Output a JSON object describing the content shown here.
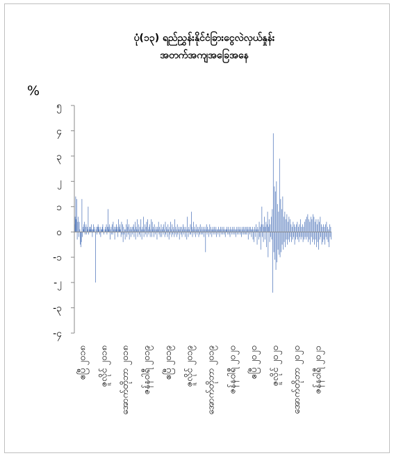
{
  "chart_data": {
    "type": "bar",
    "title_line1": "ပုံ(၁၃) ရည်ညွှန်းနိုင်ငံခြားငွေလဲလှယ်နှုန်း",
    "title_line2": "အတက်အကျအခြေအနေ",
    "ylabel": "%",
    "ylim": [
      -4,
      5
    ],
    "y_ticks": [
      {
        "value": 5,
        "label": "၅"
      },
      {
        "value": 4,
        "label": "၄"
      },
      {
        "value": 3,
        "label": "၃"
      },
      {
        "value": 2,
        "label": "၂"
      },
      {
        "value": 1,
        "label": "၁"
      },
      {
        "value": 0,
        "label": "၀"
      },
      {
        "value": -1,
        "label": "-၁"
      },
      {
        "value": -2,
        "label": "-၂"
      },
      {
        "value": -3,
        "label": "-၃"
      },
      {
        "value": -4,
        "label": "-၄"
      }
    ],
    "x_tick_labels": [
      "ဧပြီ ၂၀၁၈",
      "ဇူလိုင် ၂၀၁၈",
      "အောက်တိုဘာ ၂၀၁၈",
      "ဇန်နဝါရီ ၂၀၁၉",
      "ဧပြီ ၂၀၁၉",
      "ဇူလိုင် ၂၀၁၉",
      "အောက်တိုဘာ ၂၀၁၉",
      "ဇန်နဝါရီ ၂၀၂၀",
      "ဧပြီ ၂၀၂၀",
      "ဇူလိုင် ၂၀၂၀",
      "အောက်တိုဘာ ၂၀၂၀",
      "ဇန်နဝါရီ ၂၀၂၁"
    ],
    "series_color": "#5b7fbf",
    "grid": false,
    "values": [
      0.3,
      0.6,
      1.4,
      0.5,
      1.3,
      -0.3,
      0.4,
      0.6,
      -0.2,
      0.4,
      0.1,
      -0.5,
      -0.6,
      -0.4,
      1.3,
      -0.2,
      0.2,
      0.1,
      0.3,
      0.4,
      -0.1,
      0.2,
      0.3,
      -0.1,
      0.2,
      0.1,
      1.0,
      -0.1,
      0.1,
      0.2,
      0.2,
      0.1,
      0.3,
      0.1,
      -0.2,
      0.1,
      0.3,
      0.1,
      0.2,
      0.0,
      -2.0,
      0.1,
      0.2,
      -0.1,
      0.2,
      0.3,
      0.2,
      0.1,
      -0.1,
      0.2,
      -0.2,
      0.1,
      0.1,
      0.2,
      0.3,
      0.1,
      -0.1,
      0.0,
      0.1,
      0.2,
      0.1,
      0.3,
      -0.1,
      0.2,
      0.9,
      0.1,
      0.2,
      0.3,
      -0.3,
      0.1,
      0.2,
      -0.1,
      0.3,
      -0.1,
      0.4,
      0.1,
      0.2,
      -0.3,
      0.1,
      0.2,
      0.3,
      0.1,
      0.2,
      -0.2,
      0.5,
      0.1,
      0.2,
      0.3,
      0.1,
      -0.2,
      0.4,
      -0.1,
      0.3,
      -0.4,
      0.2,
      -0.1,
      0.1,
      -0.3,
      0.1,
      0.3,
      -0.2,
      0.5,
      0.2,
      -0.1,
      0.3,
      -0.3,
      0.1,
      0.2,
      -0.2,
      0.1,
      0.2,
      -0.1,
      0.2,
      0.3,
      -0.2,
      0.1,
      0.4,
      -0.3,
      0.2,
      0.1,
      0.5,
      -0.2,
      0.1,
      0.3,
      -0.1,
      0.2,
      -0.2,
      0.5,
      0.1,
      -0.3,
      0.2,
      0.1,
      0.6,
      -0.2,
      0.1,
      0.3,
      -0.1,
      0.2,
      0.4,
      -0.2,
      0.5,
      0.1,
      -0.1,
      0.2,
      0.3,
      -0.2,
      0.1,
      0.5,
      -0.2,
      0.4,
      0.1,
      0.2,
      -0.2,
      0.3,
      0.1,
      -0.1,
      0.2,
      0.1,
      -0.3,
      0.2,
      0.1,
      0.4,
      -0.1,
      0.2,
      -0.2,
      0.1,
      0.3,
      -0.2,
      0.1,
      0.2,
      -0.1,
      0.3,
      0.1,
      -0.2,
      0.4,
      -0.1,
      0.2,
      0.1,
      -0.2,
      0.3,
      0.1,
      -0.3,
      0.2,
      -0.1,
      0.4,
      0.1,
      -0.2,
      0.3,
      -0.1,
      0.2,
      0.1,
      -0.2,
      0.5,
      -0.1,
      0.2,
      0.1,
      -0.2,
      0.3,
      -0.1,
      0.1,
      0.2,
      -0.3,
      0.1,
      0.2,
      -0.1,
      0.2,
      -0.2,
      0.1,
      0.3,
      -0.1,
      0.2,
      0.1,
      -0.2,
      0.2,
      0.1,
      -0.3,
      0.6,
      0.1,
      -0.2,
      0.2,
      0.1,
      -0.1,
      0.3,
      -0.1,
      0.8,
      0.2,
      -0.2,
      0.1,
      0.4,
      -0.1,
      0.2,
      0.1,
      -0.2,
      0.3,
      0.1,
      -0.1,
      0.2,
      0.1,
      -0.2,
      0.2,
      -0.1,
      0.3,
      0.1,
      -0.1,
      0.2,
      -0.1,
      0.1,
      0.2,
      -0.2,
      0.1,
      0.2,
      -0.8,
      0.1,
      0.3,
      -0.1,
      0.2,
      0.1,
      -0.2,
      0.1,
      0.3,
      -0.1,
      0.2,
      0.1,
      -0.2,
      0.1,
      0.2,
      -0.1,
      0.1,
      0.2,
      -0.1,
      0.1,
      0.2,
      -0.2,
      0.1,
      0.1,
      -0.1,
      0.2,
      0.1,
      -0.2,
      0.1,
      0.2,
      -0.1,
      0.1,
      0.2,
      -0.1,
      0.1,
      0.2,
      -0.1,
      0.1,
      -0.2,
      0.1,
      0.1,
      0.2,
      -0.1,
      0.1,
      0.2,
      -0.1,
      0.1,
      -0.2,
      0.2,
      0.1,
      -0.1,
      0.1,
      0.2,
      -0.1,
      0.1,
      0.2,
      -0.1,
      0.1,
      -0.2,
      0.1,
      0.2,
      -0.1,
      0.1,
      0.2,
      -0.1,
      0.1,
      0.2,
      -0.1,
      0.1,
      -0.2,
      0.2,
      0.1,
      -0.1,
      0.2,
      -0.1,
      0.1,
      0.2,
      -0.1,
      0.2,
      -0.1,
      0.1,
      0.2,
      -0.3,
      0.1,
      0.2,
      -0.1,
      0.2,
      0.1,
      -0.2,
      0.1,
      0.2,
      -0.3,
      0.1,
      -0.4,
      0.2,
      0.1,
      -0.2,
      0.3,
      0.1,
      -0.5,
      0.2,
      0.1,
      -0.3,
      0.4,
      -0.2,
      0.2,
      -0.7,
      0.3,
      1.0,
      -0.2,
      0.3,
      -0.4,
      0.2,
      0.6,
      -0.3,
      0.2,
      0.4,
      -0.6,
      0.3,
      0.8,
      -1.0,
      0.2,
      0.5,
      -0.4,
      0.3,
      -0.2,
      0.6,
      -0.3,
      0.9,
      -2.4,
      3.9,
      -0.8,
      1.8,
      -1.1,
      1.6,
      -1.5,
      2.0,
      -1.2,
      1.1,
      -0.7,
      0.8,
      -0.9,
      2.9,
      -1.0,
      1.3,
      -0.8,
      0.9,
      -0.5,
      1.4,
      -0.7,
      0.6,
      -0.4,
      0.8,
      -0.6,
      0.5,
      -0.3,
      0.7,
      -0.5,
      0.4,
      -0.3,
      0.6,
      -0.4,
      0.5,
      -0.2,
      0.3,
      -0.4,
      0.2,
      -0.3,
      0.4,
      -0.2,
      0.3,
      -0.5,
      0.2,
      -0.3,
      0.3,
      -0.2,
      0.4,
      -0.3,
      0.2,
      -0.4,
      0.3,
      -0.2,
      0.5,
      -0.3,
      0.2,
      -0.2,
      0.3,
      -0.4,
      0.2,
      -0.3,
      0.4,
      -0.2,
      0.5,
      -0.3,
      0.6,
      -0.2,
      0.7,
      -0.4,
      0.5,
      -0.3,
      0.4,
      -0.5,
      0.6,
      -0.2,
      0.5,
      -0.4,
      0.7,
      -0.3,
      0.6,
      -0.5,
      0.4,
      -0.3,
      0.5,
      -0.6,
      0.3,
      -0.4,
      0.5,
      -0.7,
      0.4,
      -0.3,
      0.6,
      -0.2,
      0.3,
      -0.5,
      0.2,
      -0.4,
      0.3,
      -0.3,
      0.2,
      -0.5,
      0.3,
      -0.2,
      0.4,
      -0.3,
      0.2,
      -0.4,
      0.1,
      -0.6,
      0.3,
      -0.2,
      0.2,
      -0.3
    ]
  }
}
